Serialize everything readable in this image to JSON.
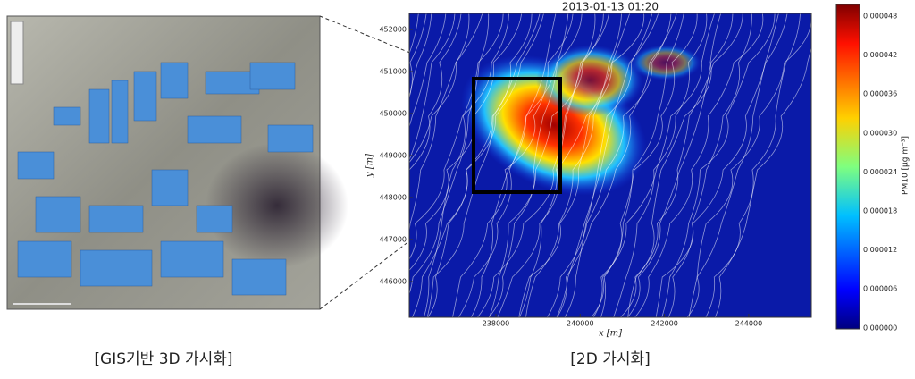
{
  "figure_3d": {
    "caption": "[GIS기반 3D 가시화]"
  },
  "figure_2d": {
    "caption": "[2D 가시화]",
    "title": "2013-01-13 01:20",
    "x_label": "x [m]",
    "y_label": "y [m]",
    "x_ticks": [
      "238000",
      "240000",
      "242000",
      "244000"
    ],
    "y_ticks": [
      "452000",
      "451000",
      "450000",
      "449000",
      "448000",
      "447000",
      "446000"
    ],
    "colorbar": {
      "label": "PM10 [μg m⁻³]",
      "ticks": [
        "0.000048",
        "0.000042",
        "0.000036",
        "0.000030",
        "0.000024",
        "0.000018",
        "0.000012",
        "0.000006",
        "0.000000"
      ]
    }
  }
}
